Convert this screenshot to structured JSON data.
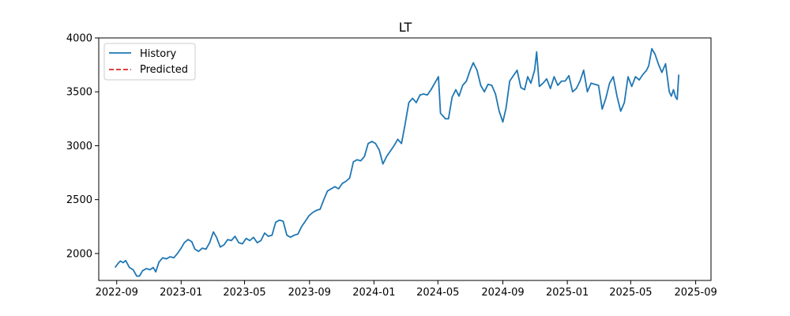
{
  "chart_data": {
    "type": "line",
    "title": "LT",
    "xlabel": "",
    "ylabel": "",
    "grid": false,
    "legend_placement": "top-left",
    "x_ticks": [
      "2022-09",
      "2023-01",
      "2023-05",
      "2023-09",
      "2024-01",
      "2024-05",
      "2024-09",
      "2025-01",
      "2025-05",
      "2025-09"
    ],
    "y_ticks": [
      2000,
      2500,
      3000,
      3500,
      4000
    ],
    "xlim": [
      "2022-07-29",
      "2025-09-30"
    ],
    "ylim": [
      1750,
      4000
    ],
    "series": [
      {
        "name": "History",
        "color": "#1f77b4",
        "style": "solid",
        "points": [
          [
            "2022-08-29",
            1870
          ],
          [
            "2022-09-03",
            1905
          ],
          [
            "2022-09-08",
            1930
          ],
          [
            "2022-09-13",
            1915
          ],
          [
            "2022-09-18",
            1935
          ],
          [
            "2022-09-25",
            1870
          ],
          [
            "2022-10-02",
            1850
          ],
          [
            "2022-10-09",
            1790
          ],
          [
            "2022-10-14",
            1790
          ],
          [
            "2022-10-20",
            1840
          ],
          [
            "2022-10-27",
            1860
          ],
          [
            "2022-11-03",
            1850
          ],
          [
            "2022-11-09",
            1870
          ],
          [
            "2022-11-14",
            1830
          ],
          [
            "2022-11-20",
            1920
          ],
          [
            "2022-11-27",
            1960
          ],
          [
            "2022-12-04",
            1950
          ],
          [
            "2022-12-11",
            1970
          ],
          [
            "2022-12-18",
            1960
          ],
          [
            "2022-12-25",
            2000
          ],
          [
            "2023-01-01",
            2050
          ],
          [
            "2023-01-07",
            2100
          ],
          [
            "2023-01-14",
            2130
          ],
          [
            "2023-01-21",
            2110
          ],
          [
            "2023-01-27",
            2040
          ],
          [
            "2023-02-03",
            2020
          ],
          [
            "2023-02-10",
            2050
          ],
          [
            "2023-02-17",
            2040
          ],
          [
            "2023-02-24",
            2100
          ],
          [
            "2023-03-03",
            2200
          ],
          [
            "2023-03-09",
            2150
          ],
          [
            "2023-03-16",
            2060
          ],
          [
            "2023-03-23",
            2080
          ],
          [
            "2023-03-30",
            2130
          ],
          [
            "2023-04-06",
            2120
          ],
          [
            "2023-04-13",
            2160
          ],
          [
            "2023-04-20",
            2100
          ],
          [
            "2023-04-27",
            2090
          ],
          [
            "2023-05-04",
            2140
          ],
          [
            "2023-05-11",
            2120
          ],
          [
            "2023-05-18",
            2150
          ],
          [
            "2023-05-25",
            2100
          ],
          [
            "2023-06-01",
            2120
          ],
          [
            "2023-06-08",
            2190
          ],
          [
            "2023-06-15",
            2160
          ],
          [
            "2023-06-22",
            2170
          ],
          [
            "2023-06-29",
            2290
          ],
          [
            "2023-07-06",
            2310
          ],
          [
            "2023-07-13",
            2300
          ],
          [
            "2023-07-20",
            2170
          ],
          [
            "2023-07-27",
            2150
          ],
          [
            "2023-08-03",
            2170
          ],
          [
            "2023-08-10",
            2180
          ],
          [
            "2023-08-17",
            2250
          ],
          [
            "2023-08-24",
            2300
          ],
          [
            "2023-08-31",
            2350
          ],
          [
            "2023-09-07",
            2380
          ],
          [
            "2023-09-14",
            2400
          ],
          [
            "2023-09-21",
            2410
          ],
          [
            "2023-09-28",
            2500
          ],
          [
            "2023-10-05",
            2580
          ],
          [
            "2023-10-12",
            2600
          ],
          [
            "2023-10-19",
            2620
          ],
          [
            "2023-10-26",
            2600
          ],
          [
            "2023-11-02",
            2650
          ],
          [
            "2023-11-09",
            2670
          ],
          [
            "2023-11-16",
            2700
          ],
          [
            "2023-11-23",
            2850
          ],
          [
            "2023-11-30",
            2870
          ],
          [
            "2023-12-07",
            2860
          ],
          [
            "2023-12-14",
            2900
          ],
          [
            "2023-12-21",
            3020
          ],
          [
            "2023-12-28",
            3040
          ],
          [
            "2024-01-04",
            3020
          ],
          [
            "2024-01-11",
            2960
          ],
          [
            "2024-01-18",
            2830
          ],
          [
            "2024-01-25",
            2900
          ],
          [
            "2024-02-01",
            2950
          ],
          [
            "2024-02-08",
            3000
          ],
          [
            "2024-02-15",
            3060
          ],
          [
            "2024-02-22",
            3020
          ],
          [
            "2024-02-29",
            3200
          ],
          [
            "2024-03-07",
            3400
          ],
          [
            "2024-03-14",
            3440
          ],
          [
            "2024-03-21",
            3400
          ],
          [
            "2024-03-28",
            3470
          ],
          [
            "2024-04-04",
            3480
          ],
          [
            "2024-04-11",
            3470
          ],
          [
            "2024-04-18",
            3520
          ],
          [
            "2024-04-25",
            3580
          ],
          [
            "2024-05-02",
            3640
          ],
          [
            "2024-05-06",
            3300
          ],
          [
            "2024-05-10",
            3280
          ],
          [
            "2024-05-15",
            3250
          ],
          [
            "2024-05-21",
            3250
          ],
          [
            "2024-05-28",
            3450
          ],
          [
            "2024-06-04",
            3520
          ],
          [
            "2024-06-10",
            3460
          ],
          [
            "2024-06-17",
            3560
          ],
          [
            "2024-06-24",
            3600
          ],
          [
            "2024-07-01",
            3700
          ],
          [
            "2024-07-07",
            3770
          ],
          [
            "2024-07-14",
            3700
          ],
          [
            "2024-07-21",
            3560
          ],
          [
            "2024-07-28",
            3500
          ],
          [
            "2024-08-04",
            3570
          ],
          [
            "2024-08-11",
            3560
          ],
          [
            "2024-08-18",
            3480
          ],
          [
            "2024-08-25",
            3320
          ],
          [
            "2024-09-01",
            3220
          ],
          [
            "2024-09-07",
            3350
          ],
          [
            "2024-09-14",
            3600
          ],
          [
            "2024-09-21",
            3650
          ],
          [
            "2024-09-28",
            3700
          ],
          [
            "2024-10-05",
            3540
          ],
          [
            "2024-10-12",
            3520
          ],
          [
            "2024-10-18",
            3640
          ],
          [
            "2024-10-24",
            3580
          ],
          [
            "2024-10-31",
            3700
          ],
          [
            "2024-11-04",
            3870
          ],
          [
            "2024-11-09",
            3550
          ],
          [
            "2024-11-16",
            3580
          ],
          [
            "2024-11-23",
            3620
          ],
          [
            "2024-11-30",
            3530
          ],
          [
            "2024-12-07",
            3640
          ],
          [
            "2024-12-14",
            3560
          ],
          [
            "2024-12-21",
            3600
          ],
          [
            "2024-12-28",
            3600
          ],
          [
            "2025-01-04",
            3650
          ],
          [
            "2025-01-11",
            3500
          ],
          [
            "2025-01-18",
            3530
          ],
          [
            "2025-01-25",
            3600
          ],
          [
            "2025-02-01",
            3700
          ],
          [
            "2025-02-08",
            3500
          ],
          [
            "2025-02-15",
            3580
          ],
          [
            "2025-02-22",
            3570
          ],
          [
            "2025-03-01",
            3560
          ],
          [
            "2025-03-08",
            3340
          ],
          [
            "2025-03-15",
            3440
          ],
          [
            "2025-03-22",
            3580
          ],
          [
            "2025-03-29",
            3640
          ],
          [
            "2025-04-05",
            3460
          ],
          [
            "2025-04-12",
            3320
          ],
          [
            "2025-04-19",
            3400
          ],
          [
            "2025-04-26",
            3640
          ],
          [
            "2025-05-03",
            3550
          ],
          [
            "2025-05-10",
            3640
          ],
          [
            "2025-05-17",
            3610
          ],
          [
            "2025-05-24",
            3660
          ],
          [
            "2025-05-31",
            3700
          ],
          [
            "2025-06-04",
            3740
          ],
          [
            "2025-06-10",
            3900
          ],
          [
            "2025-06-16",
            3850
          ],
          [
            "2025-06-23",
            3750
          ],
          [
            "2025-06-29",
            3680
          ],
          [
            "2025-07-06",
            3760
          ],
          [
            "2025-07-13",
            3500
          ],
          [
            "2025-07-17",
            3460
          ],
          [
            "2025-07-21",
            3520
          ],
          [
            "2025-07-25",
            3450
          ],
          [
            "2025-07-28",
            3430
          ],
          [
            "2025-07-31",
            3660
          ]
        ]
      },
      {
        "name": "Predicted",
        "color": "#d62728",
        "style": "dashed",
        "points": []
      }
    ]
  }
}
